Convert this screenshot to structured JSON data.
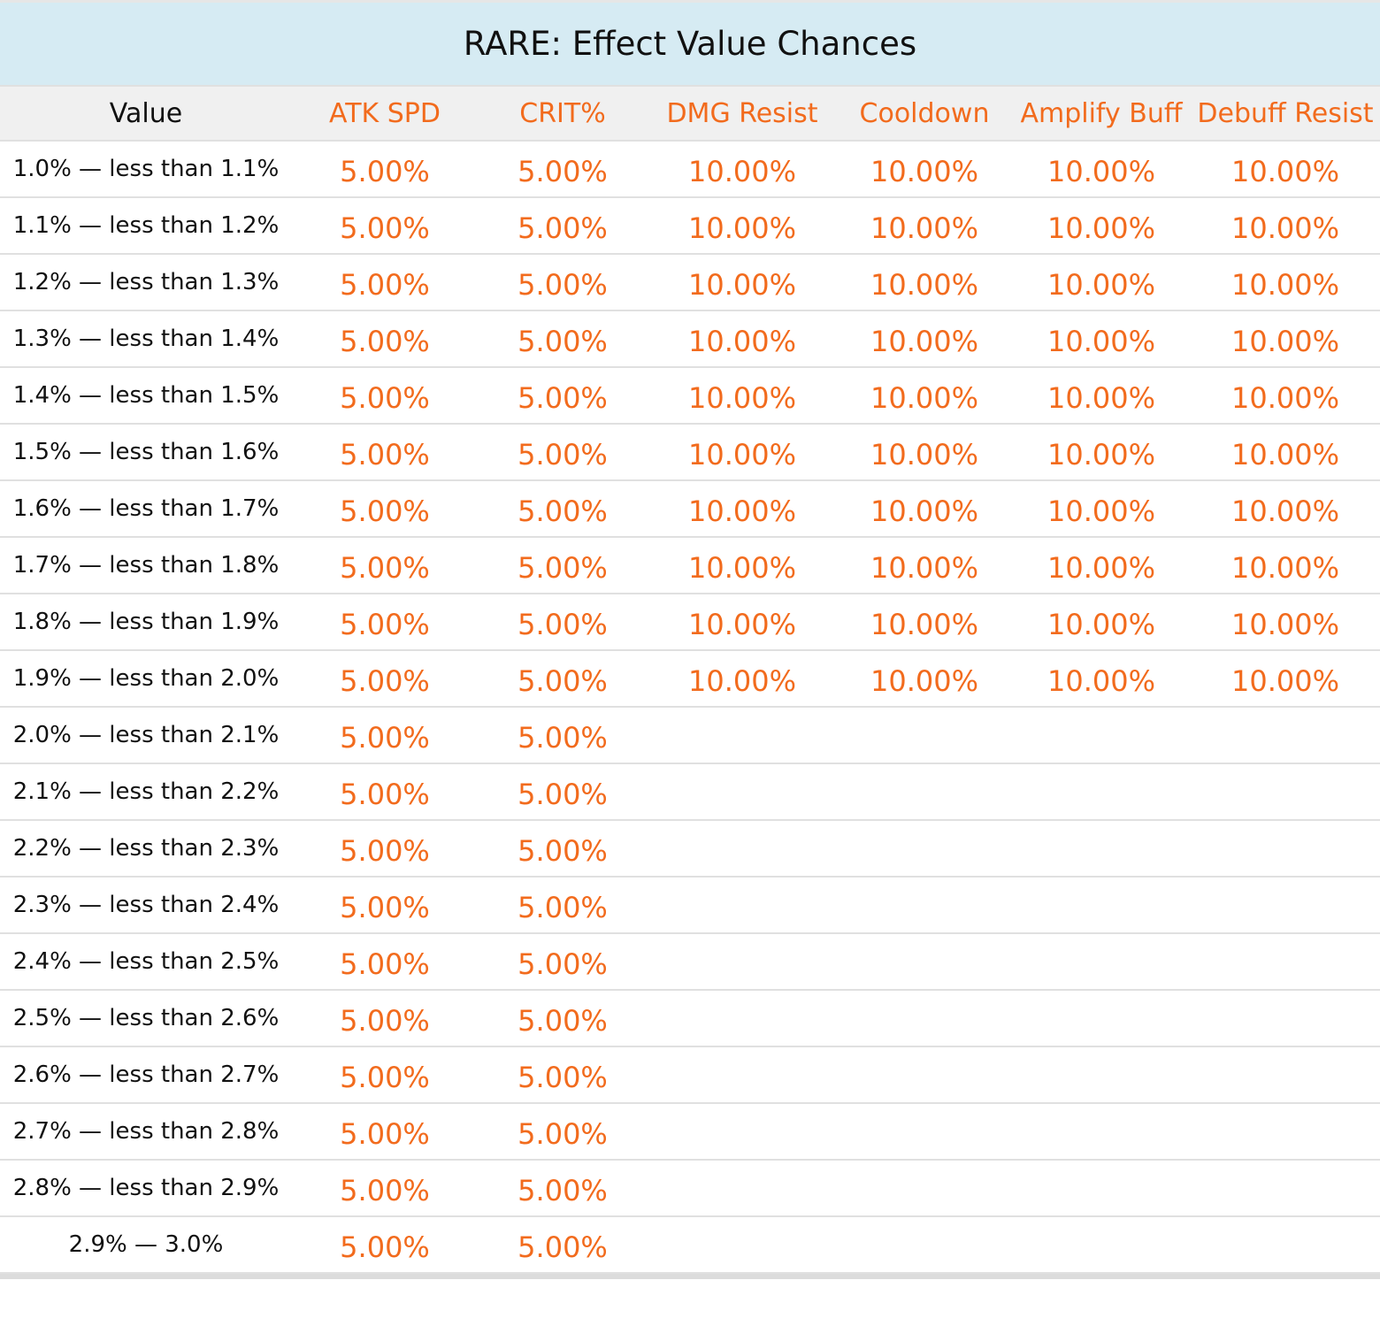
{
  "title": "RARE: Effect Value Chances",
  "headers": [
    "Value",
    "ATK SPD",
    "CRIT%",
    "DMG Resist",
    "Cooldown",
    "Amplify Buff",
    "Debuff Resist"
  ],
  "rows": [
    {
      "value": "1.0% — less than 1.1%",
      "atk_spd": "5.00%",
      "crit": "5.00%",
      "dmg_resist": "10.00%",
      "cooldown": "10.00%",
      "amplify_buff": "10.00%",
      "debuff_resist": "10.00%"
    },
    {
      "value": "1.1% — less than 1.2%",
      "atk_spd": "5.00%",
      "crit": "5.00%",
      "dmg_resist": "10.00%",
      "cooldown": "10.00%",
      "amplify_buff": "10.00%",
      "debuff_resist": "10.00%"
    },
    {
      "value": "1.2% — less than 1.3%",
      "atk_spd": "5.00%",
      "crit": "5.00%",
      "dmg_resist": "10.00%",
      "cooldown": "10.00%",
      "amplify_buff": "10.00%",
      "debuff_resist": "10.00%"
    },
    {
      "value": "1.3% — less than 1.4%",
      "atk_spd": "5.00%",
      "crit": "5.00%",
      "dmg_resist": "10.00%",
      "cooldown": "10.00%",
      "amplify_buff": "10.00%",
      "debuff_resist": "10.00%"
    },
    {
      "value": "1.4% — less than 1.5%",
      "atk_spd": "5.00%",
      "crit": "5.00%",
      "dmg_resist": "10.00%",
      "cooldown": "10.00%",
      "amplify_buff": "10.00%",
      "debuff_resist": "10.00%"
    },
    {
      "value": "1.5% — less than 1.6%",
      "atk_spd": "5.00%",
      "crit": "5.00%",
      "dmg_resist": "10.00%",
      "cooldown": "10.00%",
      "amplify_buff": "10.00%",
      "debuff_resist": "10.00%"
    },
    {
      "value": "1.6% — less than 1.7%",
      "atk_spd": "5.00%",
      "crit": "5.00%",
      "dmg_resist": "10.00%",
      "cooldown": "10.00%",
      "amplify_buff": "10.00%",
      "debuff_resist": "10.00%"
    },
    {
      "value": "1.7% — less than 1.8%",
      "atk_spd": "5.00%",
      "crit": "5.00%",
      "dmg_resist": "10.00%",
      "cooldown": "10.00%",
      "amplify_buff": "10.00%",
      "debuff_resist": "10.00%"
    },
    {
      "value": "1.8% — less than 1.9%",
      "atk_spd": "5.00%",
      "crit": "5.00%",
      "dmg_resist": "10.00%",
      "cooldown": "10.00%",
      "amplify_buff": "10.00%",
      "debuff_resist": "10.00%"
    },
    {
      "value": "1.9% — less than 2.0%",
      "atk_spd": "5.00%",
      "crit": "5.00%",
      "dmg_resist": "10.00%",
      "cooldown": "10.00%",
      "amplify_buff": "10.00%",
      "debuff_resist": "10.00%"
    },
    {
      "value": "2.0% — less than 2.1%",
      "atk_spd": "5.00%",
      "crit": "5.00%",
      "dmg_resist": "",
      "cooldown": "",
      "amplify_buff": "",
      "debuff_resist": ""
    },
    {
      "value": "2.1% — less than 2.2%",
      "atk_spd": "5.00%",
      "crit": "5.00%",
      "dmg_resist": "",
      "cooldown": "",
      "amplify_buff": "",
      "debuff_resist": ""
    },
    {
      "value": "2.2% — less than 2.3%",
      "atk_spd": "5.00%",
      "crit": "5.00%",
      "dmg_resist": "",
      "cooldown": "",
      "amplify_buff": "",
      "debuff_resist": ""
    },
    {
      "value": "2.3% — less than 2.4%",
      "atk_spd": "5.00%",
      "crit": "5.00%",
      "dmg_resist": "",
      "cooldown": "",
      "amplify_buff": "",
      "debuff_resist": ""
    },
    {
      "value": "2.4% — less than 2.5%",
      "atk_spd": "5.00%",
      "crit": "5.00%",
      "dmg_resist": "",
      "cooldown": "",
      "amplify_buff": "",
      "debuff_resist": ""
    },
    {
      "value": "2.5% — less than 2.6%",
      "atk_spd": "5.00%",
      "crit": "5.00%",
      "dmg_resist": "",
      "cooldown": "",
      "amplify_buff": "",
      "debuff_resist": ""
    },
    {
      "value": "2.6% — less than 2.7%",
      "atk_spd": "5.00%",
      "crit": "5.00%",
      "dmg_resist": "",
      "cooldown": "",
      "amplify_buff": "",
      "debuff_resist": ""
    },
    {
      "value": "2.7% — less than 2.8%",
      "atk_spd": "5.00%",
      "crit": "5.00%",
      "dmg_resist": "",
      "cooldown": "",
      "amplify_buff": "",
      "debuff_resist": ""
    },
    {
      "value": "2.8% — less than 2.9%",
      "atk_spd": "5.00%",
      "crit": "5.00%",
      "dmg_resist": "",
      "cooldown": "",
      "amplify_buff": "",
      "debuff_resist": ""
    },
    {
      "value": "2.9% — 3.0%",
      "atk_spd": "5.00%",
      "crit": "5.00%",
      "dmg_resist": "",
      "cooldown": "",
      "amplify_buff": "",
      "debuff_resist": ""
    }
  ],
  "colors": {
    "title_bg": "#d6ebf3",
    "header_bg": "#f0f0f0",
    "accent": "#f26b1d",
    "text": "#111111",
    "divider": "#e0e0e0"
  }
}
